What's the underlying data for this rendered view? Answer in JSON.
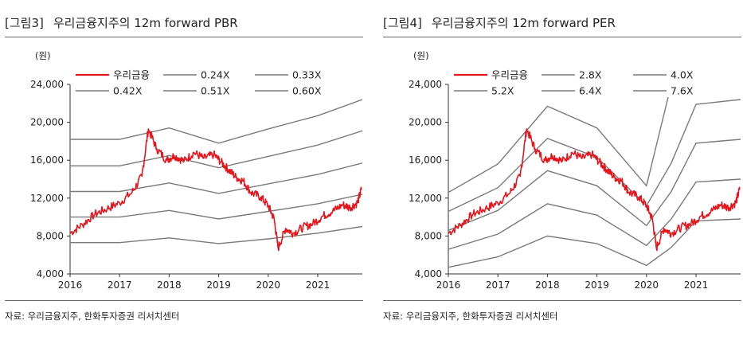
{
  "colors": {
    "main_series": "#e8141c",
    "band_lines": "#7a7a7a",
    "axis": "#333333"
  },
  "panels": [
    {
      "figure_no": "[그림3]",
      "title": "우리금융지주의 12m forward PBR",
      "source": "자료: 우리금융지주, 한화투자증권 리서치센터"
    },
    {
      "figure_no": "[그림4]",
      "title": "우리금융지주의 12m forward PER",
      "source": "자료: 우리금융지주, 한화투자증권 리서치센터"
    }
  ],
  "chart_data": [
    {
      "type": "line",
      "unit_label": "(원)",
      "ylim": [
        4000,
        24000
      ],
      "yticks": [
        4000,
        8000,
        12000,
        16000,
        20000,
        24000
      ],
      "ytick_labels": [
        "4,000",
        "8,000",
        "12,000",
        "16,000",
        "20,000",
        "24,000"
      ],
      "xlim": [
        2016.0,
        2021.9
      ],
      "xticks": [
        2016,
        2017,
        2018,
        2019,
        2020,
        2021
      ],
      "xtick_labels": [
        "2016",
        "2017",
        "2018",
        "2019",
        "2020",
        "2021"
      ],
      "legend_position": "top",
      "legend_rows": [
        [
          "우리금융",
          "0.24X",
          "0.33X"
        ],
        [
          "0.42X",
          "0.51X",
          "0.60X"
        ]
      ],
      "series": [
        {
          "name": "우리금융",
          "main": true,
          "x": [
            2016.0,
            2016.25,
            2016.5,
            2016.75,
            2017.0,
            2017.25,
            2017.45,
            2017.58,
            2017.75,
            2017.95,
            2018.1,
            2018.3,
            2018.5,
            2018.7,
            2018.9,
            2019.05,
            2019.2,
            2019.35,
            2019.5,
            2019.65,
            2019.85,
            2020.0,
            2020.12,
            2020.2,
            2020.35,
            2020.5,
            2020.7,
            2020.9,
            2021.1,
            2021.3,
            2021.5,
            2021.65,
            2021.8,
            2021.88
          ],
          "values": [
            8300,
            9200,
            10300,
            10900,
            11500,
            12600,
            14300,
            19300,
            17200,
            16000,
            16500,
            15900,
            16800,
            16200,
            16600,
            15800,
            15000,
            14200,
            13800,
            12600,
            12100,
            11200,
            9800,
            6700,
            8800,
            8300,
            8900,
            9300,
            10100,
            10600,
            11300,
            11000,
            11500,
            12900
          ]
        },
        {
          "name": "0.24X",
          "x": [
            2016.0,
            2017.0,
            2018.0,
            2019.0,
            2020.0,
            2021.0,
            2021.9
          ],
          "values": [
            7300,
            7300,
            7800,
            7200,
            7700,
            8300,
            9000
          ]
        },
        {
          "name": "0.33X",
          "x": [
            2016.0,
            2017.0,
            2018.0,
            2019.0,
            2020.0,
            2021.0,
            2021.9
          ],
          "values": [
            10000,
            10000,
            10700,
            9800,
            10600,
            11400,
            12400
          ]
        },
        {
          "name": "0.42X",
          "x": [
            2016.0,
            2017.0,
            2018.0,
            2019.0,
            2020.0,
            2021.0,
            2021.9
          ],
          "values": [
            12700,
            12700,
            13600,
            12500,
            13500,
            14500,
            15700
          ]
        },
        {
          "name": "0.51X",
          "x": [
            2016.0,
            2017.0,
            2018.0,
            2019.0,
            2020.0,
            2021.0,
            2021.9
          ],
          "values": [
            15400,
            15400,
            16500,
            15200,
            16400,
            17600,
            19100
          ]
        },
        {
          "name": "0.60X",
          "x": [
            2016.0,
            2017.0,
            2018.0,
            2019.0,
            2020.0,
            2021.0,
            2021.9
          ],
          "values": [
            18200,
            18200,
            19400,
            17800,
            19300,
            20700,
            22400
          ]
        }
      ]
    },
    {
      "type": "line",
      "unit_label": "(원)",
      "ylim": [
        4000,
        24000
      ],
      "yticks": [
        4000,
        8000,
        12000,
        16000,
        20000,
        24000
      ],
      "ytick_labels": [
        "4,000",
        "8,000",
        "12,000",
        "16,000",
        "20,000",
        "24,000"
      ],
      "xlim": [
        2016.0,
        2021.9
      ],
      "xticks": [
        2016,
        2017,
        2018,
        2019,
        2020,
        2021
      ],
      "xtick_labels": [
        "2016",
        "2017",
        "2018",
        "2019",
        "2020",
        "2021"
      ],
      "legend_position": "top",
      "legend_rows": [
        [
          "우리금융",
          "2.8X",
          "4.0X"
        ],
        [
          "5.2X",
          "6.4X",
          "7.6X"
        ]
      ],
      "series": [
        {
          "name": "우리금융",
          "main": true,
          "x": [
            2016.0,
            2016.25,
            2016.5,
            2016.75,
            2017.0,
            2017.25,
            2017.45,
            2017.58,
            2017.75,
            2017.95,
            2018.1,
            2018.3,
            2018.5,
            2018.7,
            2018.9,
            2019.05,
            2019.2,
            2019.35,
            2019.5,
            2019.65,
            2019.85,
            2020.0,
            2020.12,
            2020.2,
            2020.35,
            2020.5,
            2020.7,
            2020.9,
            2021.1,
            2021.3,
            2021.5,
            2021.65,
            2021.8,
            2021.88
          ],
          "values": [
            8300,
            9200,
            10300,
            10900,
            11500,
            12600,
            14300,
            19300,
            17200,
            16000,
            16500,
            15900,
            16800,
            16200,
            16600,
            15800,
            15000,
            14200,
            13800,
            12600,
            12100,
            11200,
            9800,
            6700,
            8800,
            8300,
            8900,
            9300,
            10100,
            10600,
            11300,
            11000,
            11500,
            12900
          ]
        },
        {
          "name": "2.8X",
          "x": [
            2016.0,
            2017.0,
            2018.0,
            2019.0,
            2020.0,
            2020.5,
            2021.0,
            2021.9
          ],
          "values": [
            4700,
            5800,
            8000,
            7200,
            4900,
            6800,
            9600,
            9800
          ]
        },
        {
          "name": "4.0X",
          "x": [
            2016.0,
            2017.0,
            2018.0,
            2019.0,
            2020.0,
            2020.5,
            2021.0,
            2021.9
          ],
          "values": [
            6600,
            8200,
            11400,
            10200,
            7000,
            9800,
            13700,
            14000
          ]
        },
        {
          "name": "5.2X",
          "x": [
            2016.0,
            2017.0,
            2018.0,
            2019.0,
            2020.0,
            2020.5,
            2021.0,
            2021.9
          ],
          "values": [
            8600,
            10700,
            14900,
            13300,
            9100,
            12700,
            17800,
            18200
          ]
        },
        {
          "name": "6.4X",
          "x": [
            2016.0,
            2017.0,
            2018.0,
            2019.0,
            2020.0,
            2020.5,
            2021.0,
            2021.9
          ],
          "values": [
            10600,
            13100,
            18300,
            16300,
            11200,
            15700,
            21900,
            22400
          ]
        },
        {
          "name": "7.6X",
          "x": [
            2016.0,
            2017.0,
            2018.0,
            2019.0,
            2020.0,
            2020.5
          ],
          "values": [
            12600,
            15600,
            21700,
            19400,
            13300,
            24000
          ]
        }
      ]
    }
  ]
}
